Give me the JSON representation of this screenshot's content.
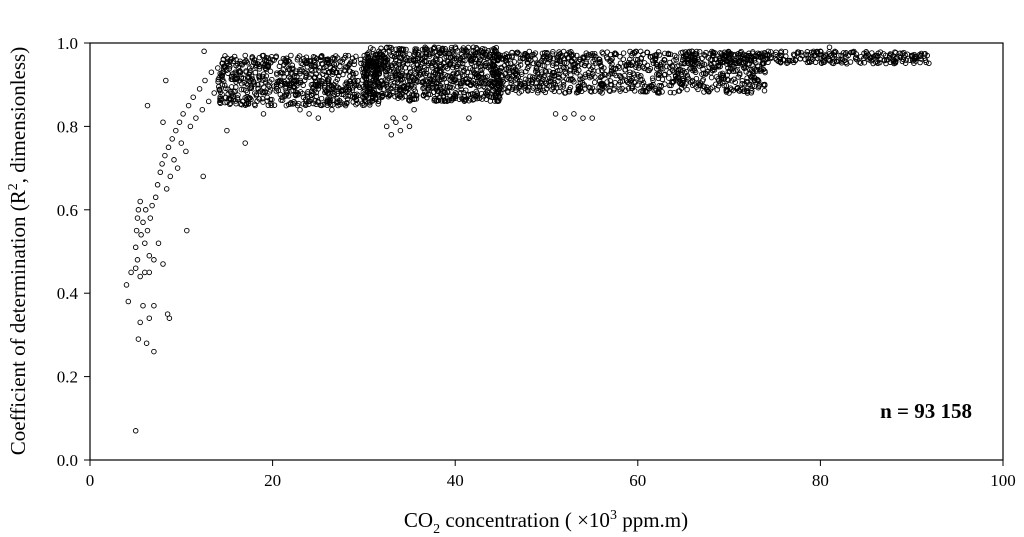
{
  "chart_data": {
    "type": "scatter",
    "title": "",
    "xlabel": {
      "pre": "CO",
      "sub": "2",
      "mid": " concentration ( ×10",
      "sup": "3",
      "post": " ppm.m)"
    },
    "ylabel": {
      "pre": "Coefficient of determination (R",
      "sup": "2",
      "post": ", dimensionless)"
    },
    "xlim": [
      0,
      100
    ],
    "ylim": [
      0,
      1.0
    ],
    "xticks": [
      0,
      20,
      40,
      60,
      80,
      100
    ],
    "xtick_labels": [
      "0",
      "20",
      "40",
      "60",
      "80",
      "100"
    ],
    "yticks": [
      0,
      0.2,
      0.4,
      0.6,
      0.8,
      1.0
    ],
    "ytick_labels": [
      "0.0",
      "0.2",
      "0.4",
      "0.6",
      "0.8",
      "1.0"
    ],
    "grid": false,
    "marker": "open-circle",
    "annotation": "n = 93 158",
    "annotation_position": "bottom-right",
    "series": [
      {
        "points": [
          [
            5.0,
            0.07
          ],
          [
            4.0,
            0.42
          ],
          [
            4.2,
            0.38
          ],
          [
            5.5,
            0.33
          ],
          [
            5.3,
            0.29
          ],
          [
            6.2,
            0.28
          ],
          [
            7.0,
            0.26
          ],
          [
            6.5,
            0.34
          ],
          [
            7.0,
            0.37
          ],
          [
            5.8,
            0.37
          ],
          [
            8.5,
            0.35
          ],
          [
            8.7,
            0.34
          ],
          [
            4.5,
            0.45
          ],
          [
            5.0,
            0.46
          ],
          [
            5.2,
            0.48
          ],
          [
            5.5,
            0.44
          ],
          [
            6.0,
            0.45
          ],
          [
            6.5,
            0.45
          ],
          [
            5.0,
            0.51
          ],
          [
            5.1,
            0.55
          ],
          [
            5.2,
            0.58
          ],
          [
            5.3,
            0.6
          ],
          [
            5.5,
            0.62
          ],
          [
            5.6,
            0.54
          ],
          [
            5.8,
            0.57
          ],
          [
            6.0,
            0.52
          ],
          [
            6.1,
            0.6
          ],
          [
            6.3,
            0.55
          ],
          [
            6.5,
            0.49
          ],
          [
            6.6,
            0.58
          ],
          [
            6.8,
            0.61
          ],
          [
            7.0,
            0.48
          ],
          [
            7.2,
            0.63
          ],
          [
            7.4,
            0.66
          ],
          [
            7.5,
            0.52
          ],
          [
            7.7,
            0.69
          ],
          [
            7.9,
            0.71
          ],
          [
            8.0,
            0.47
          ],
          [
            8.2,
            0.73
          ],
          [
            8.4,
            0.65
          ],
          [
            8.6,
            0.75
          ],
          [
            8.8,
            0.68
          ],
          [
            9.0,
            0.77
          ],
          [
            9.2,
            0.72
          ],
          [
            9.4,
            0.79
          ],
          [
            9.6,
            0.7
          ],
          [
            9.8,
            0.81
          ],
          [
            10.0,
            0.76
          ],
          [
            10.2,
            0.83
          ],
          [
            10.5,
            0.74
          ],
          [
            10.8,
            0.85
          ],
          [
            11.0,
            0.8
          ],
          [
            11.3,
            0.87
          ],
          [
            11.6,
            0.82
          ],
          [
            12.0,
            0.89
          ],
          [
            12.3,
            0.84
          ],
          [
            12.6,
            0.91
          ],
          [
            13.0,
            0.86
          ],
          [
            13.3,
            0.93
          ],
          [
            13.6,
            0.88
          ],
          [
            14.0,
            0.94
          ],
          [
            14.5,
            0.9
          ],
          [
            15.0,
            0.95
          ],
          [
            15.5,
            0.92
          ],
          [
            16.0,
            0.96
          ],
          [
            16.5,
            0.93
          ],
          [
            17.0,
            0.97
          ],
          [
            17.5,
            0.94
          ],
          [
            18.0,
            0.96
          ],
          [
            18.5,
            0.92
          ],
          [
            19.0,
            0.97
          ],
          [
            19.5,
            0.9
          ],
          [
            20.0,
            0.96
          ],
          [
            21.0,
            0.93
          ],
          [
            22.0,
            0.97
          ],
          [
            23.0,
            0.91
          ],
          [
            24.0,
            0.95
          ],
          [
            25.0,
            0.89
          ],
          [
            26.0,
            0.96
          ],
          [
            27.0,
            0.93
          ],
          [
            28.0,
            0.97
          ],
          [
            29.0,
            0.91
          ],
          [
            30.0,
            0.95
          ],
          [
            31.0,
            0.88
          ],
          [
            6.3,
            0.85
          ],
          [
            8.0,
            0.81
          ],
          [
            8.3,
            0.91
          ],
          [
            10.6,
            0.55
          ],
          [
            12.4,
            0.68
          ],
          [
            12.5,
            0.98
          ],
          [
            15.0,
            0.79
          ],
          [
            17.0,
            0.76
          ],
          [
            19.0,
            0.83
          ],
          [
            21.5,
            0.85
          ],
          [
            23.0,
            0.84
          ],
          [
            24.0,
            0.83
          ],
          [
            25.0,
            0.82
          ],
          [
            26.5,
            0.84
          ],
          [
            28.0,
            0.85
          ],
          [
            29.0,
            0.87
          ],
          [
            32.5,
            0.8
          ],
          [
            33.0,
            0.78
          ],
          [
            33.5,
            0.81
          ],
          [
            34.0,
            0.79
          ],
          [
            34.5,
            0.82
          ],
          [
            35.0,
            0.8
          ],
          [
            35.5,
            0.84
          ],
          [
            33.2,
            0.82
          ],
          [
            41.5,
            0.82
          ],
          [
            51.0,
            0.83
          ],
          [
            52.0,
            0.82
          ],
          [
            53.0,
            0.83
          ],
          [
            54.0,
            0.82
          ],
          [
            55.0,
            0.82
          ],
          [
            32.0,
            0.9
          ],
          [
            34.0,
            0.92
          ],
          [
            36.0,
            0.94
          ],
          [
            38.0,
            0.96
          ],
          [
            39.0,
            0.98
          ],
          [
            40.0,
            0.99
          ],
          [
            41.0,
            0.98
          ],
          [
            42.0,
            0.99
          ],
          [
            43.0,
            0.97
          ],
          [
            44.0,
            0.95
          ],
          [
            46.0,
            0.93
          ],
          [
            48.0,
            0.91
          ],
          [
            50.0,
            0.89
          ],
          [
            52.0,
            0.88
          ],
          [
            54.0,
            0.9
          ],
          [
            56.0,
            0.92
          ],
          [
            58.0,
            0.94
          ],
          [
            60.0,
            0.96
          ],
          [
            62.0,
            0.95
          ],
          [
            64.0,
            0.93
          ],
          [
            66.0,
            0.91
          ],
          [
            68.0,
            0.89
          ],
          [
            70.0,
            0.88
          ],
          [
            72.0,
            0.88
          ],
          [
            74.0,
            0.97
          ],
          [
            76.0,
            0.96
          ],
          [
            78.0,
            0.97
          ],
          [
            80.0,
            0.98
          ],
          [
            81.0,
            0.99
          ],
          [
            82.0,
            0.97
          ],
          [
            84.0,
            0.96
          ],
          [
            86.0,
            0.97
          ],
          [
            88.0,
            0.96
          ],
          [
            90.0,
            0.97
          ],
          [
            91.0,
            0.97
          ],
          [
            87.0,
            0.96
          ]
        ],
        "dense_regions": [
          {
            "x": [
              14,
              32
            ],
            "y": [
              0.85,
              0.97
            ],
            "n": 700
          },
          {
            "x": [
              30,
              45
            ],
            "y": [
              0.86,
              0.99
            ],
            "n": 800
          },
          {
            "x": [
              44,
              74
            ],
            "y": [
              0.88,
              0.98
            ],
            "n": 900
          },
          {
            "x": [
              65,
              92
            ],
            "y": [
              0.95,
              0.98
            ],
            "n": 300
          }
        ]
      }
    ]
  }
}
